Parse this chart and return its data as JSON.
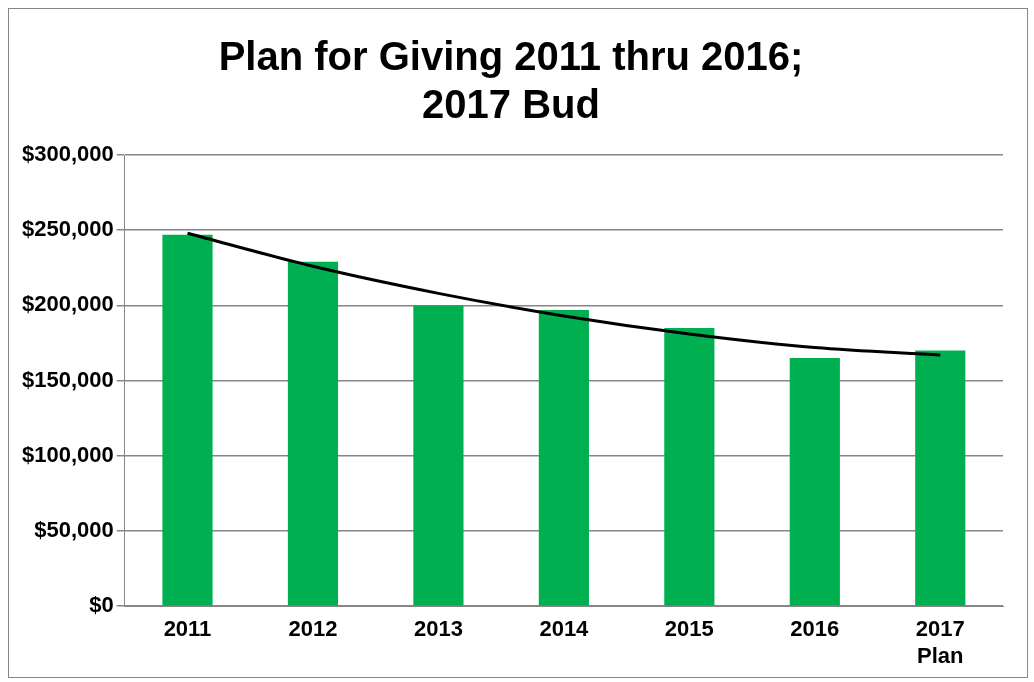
{
  "chart_data": {
    "type": "bar",
    "title": "Plan for Giving 2011 thru 2016;\n2017 Bud",
    "categories": [
      "2011",
      "2012",
      "2013",
      "2014",
      "2015",
      "2016",
      "2017\nPlan"
    ],
    "series": [
      {
        "color": "#00b050",
        "values": [
          247000,
          229000,
          200000,
          197000,
          185000,
          165000,
          170000
        ]
      },
      {
        "type": "line",
        "color": "#000000",
        "values": [
          248000,
          226000,
          208000,
          193000,
          181000,
          172000,
          167000
        ]
      }
    ],
    "ylim": [
      0,
      300000
    ],
    "yticks": [
      {
        "value": 0,
        "label": "$0"
      },
      {
        "value": 50000,
        "label": "$50,000"
      },
      {
        "value": 100000,
        "label": "$100,000"
      },
      {
        "value": 150000,
        "label": "$150,000"
      },
      {
        "value": 200000,
        "label": "$200,000"
      },
      {
        "value": 250000,
        "label": "$250,000"
      },
      {
        "value": 300000,
        "label": "$300,000"
      }
    ],
    "grid": "y",
    "legend": false,
    "marker": "none"
  }
}
